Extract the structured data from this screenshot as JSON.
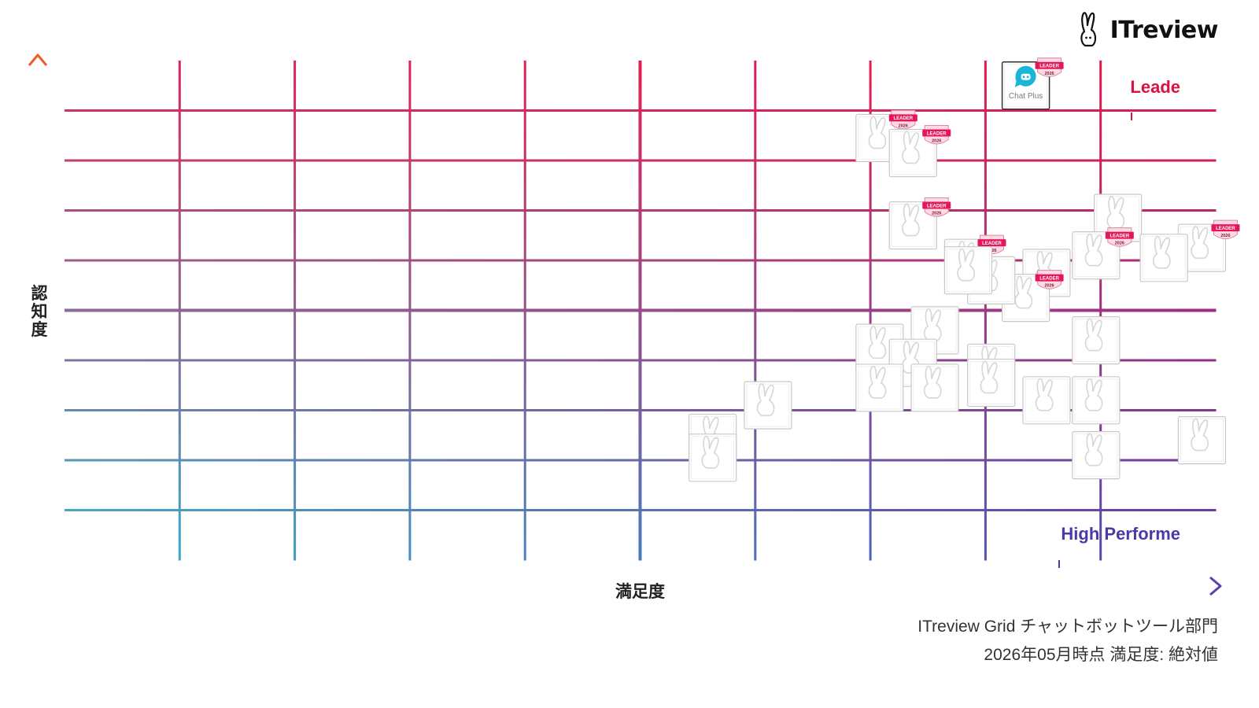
{
  "brand": {
    "name": "ITreview",
    "icon": "rabbit-logo-icon"
  },
  "chart_data": {
    "type": "scatter",
    "xlabel": "満足度",
    "ylabel": "認知度",
    "xlim": [
      0,
      100
    ],
    "ylim": [
      0,
      100
    ],
    "grid": true,
    "quadrants": {
      "top_right": "Leade",
      "bottom_right": "High Performe"
    },
    "colors": {
      "top_right": "#e8174a",
      "top_left": "#e0245a",
      "bottom_left": "#35b6cc",
      "bottom_right": "#5a3fb0",
      "label_leader": "#d9123e",
      "label_performer": "#4b3aa6"
    },
    "points": [
      {
        "x": 83.5,
        "y": 95,
        "label": "Chat Plus",
        "badge": "LEADER 2026"
      },
      {
        "x": 70.8,
        "y": 84.5,
        "badge": "LEADER 2026"
      },
      {
        "x": 73.7,
        "y": 81.5,
        "badge": "LEADER 2026"
      },
      {
        "x": 73.7,
        "y": 67,
        "badge": "LEADER 2026"
      },
      {
        "x": 91.5,
        "y": 68.5
      },
      {
        "x": 98.8,
        "y": 62.5,
        "badge": "LEADER 2026"
      },
      {
        "x": 85.3,
        "y": 57.5
      },
      {
        "x": 78.5,
        "y": 59.5,
        "badge": "LEADER 2026"
      },
      {
        "x": 89.6,
        "y": 61,
        "badge": "LEADER 2026"
      },
      {
        "x": 95.5,
        "y": 60.5
      },
      {
        "x": 83.5,
        "y": 52.5,
        "badge": "LEADER 2026"
      },
      {
        "x": 80.5,
        "y": 56
      },
      {
        "x": 78.5,
        "y": 58
      },
      {
        "x": 75.6,
        "y": 46
      },
      {
        "x": 89.6,
        "y": 44
      },
      {
        "x": 70.8,
        "y": 42.5
      },
      {
        "x": 73.7,
        "y": 39.5
      },
      {
        "x": 80.5,
        "y": 38.5
      },
      {
        "x": 80.5,
        "y": 35.5
      },
      {
        "x": 85.3,
        "y": 32
      },
      {
        "x": 70.8,
        "y": 34.5
      },
      {
        "x": 75.6,
        "y": 34.5
      },
      {
        "x": 89.6,
        "y": 32
      },
      {
        "x": 61.1,
        "y": 31
      },
      {
        "x": 56.3,
        "y": 24.5
      },
      {
        "x": 56.3,
        "y": 20.5
      },
      {
        "x": 89.6,
        "y": 21
      },
      {
        "x": 98.8,
        "y": 24
      }
    ]
  },
  "caption": {
    "line1": "ITreview Grid チャットボットツール部門",
    "line2": "2026年05月時点 満足度: 絶対値"
  }
}
